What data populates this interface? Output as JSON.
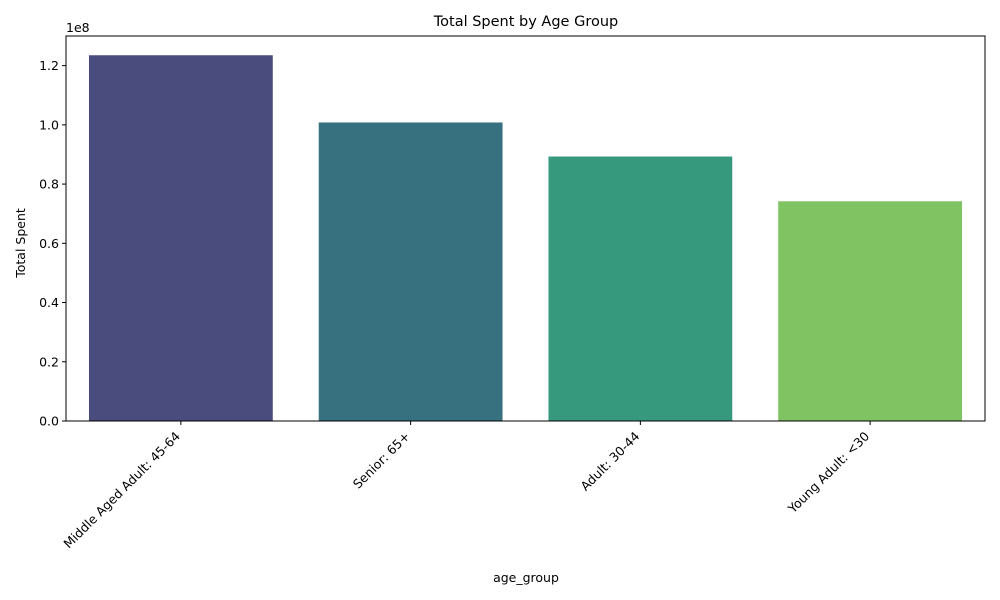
{
  "chart_data": {
    "type": "bar",
    "title": "Total Spent by Age Group",
    "xlabel": "age_group",
    "ylabel": "Total Spent",
    "y_offset_label": "1e8",
    "y_scale": 100000000,
    "ylim": [
      0,
      130000000
    ],
    "yticks": [
      0,
      20000000,
      40000000,
      60000000,
      80000000,
      100000000,
      120000000
    ],
    "ytick_labels": [
      "0.0",
      "0.2",
      "0.4",
      "0.6",
      "0.8",
      "1.0",
      "1.2"
    ],
    "categories": [
      "Middle Aged Adult: 45-64",
      "Senior: 65+",
      "Adult: 30-44",
      "Young Adult: <30"
    ],
    "values": [
      123500000,
      100800000,
      89300000,
      74200000
    ],
    "colors": [
      "#4a4c7d",
      "#37717f",
      "#36997d",
      "#80c362"
    ],
    "grid": false
  }
}
